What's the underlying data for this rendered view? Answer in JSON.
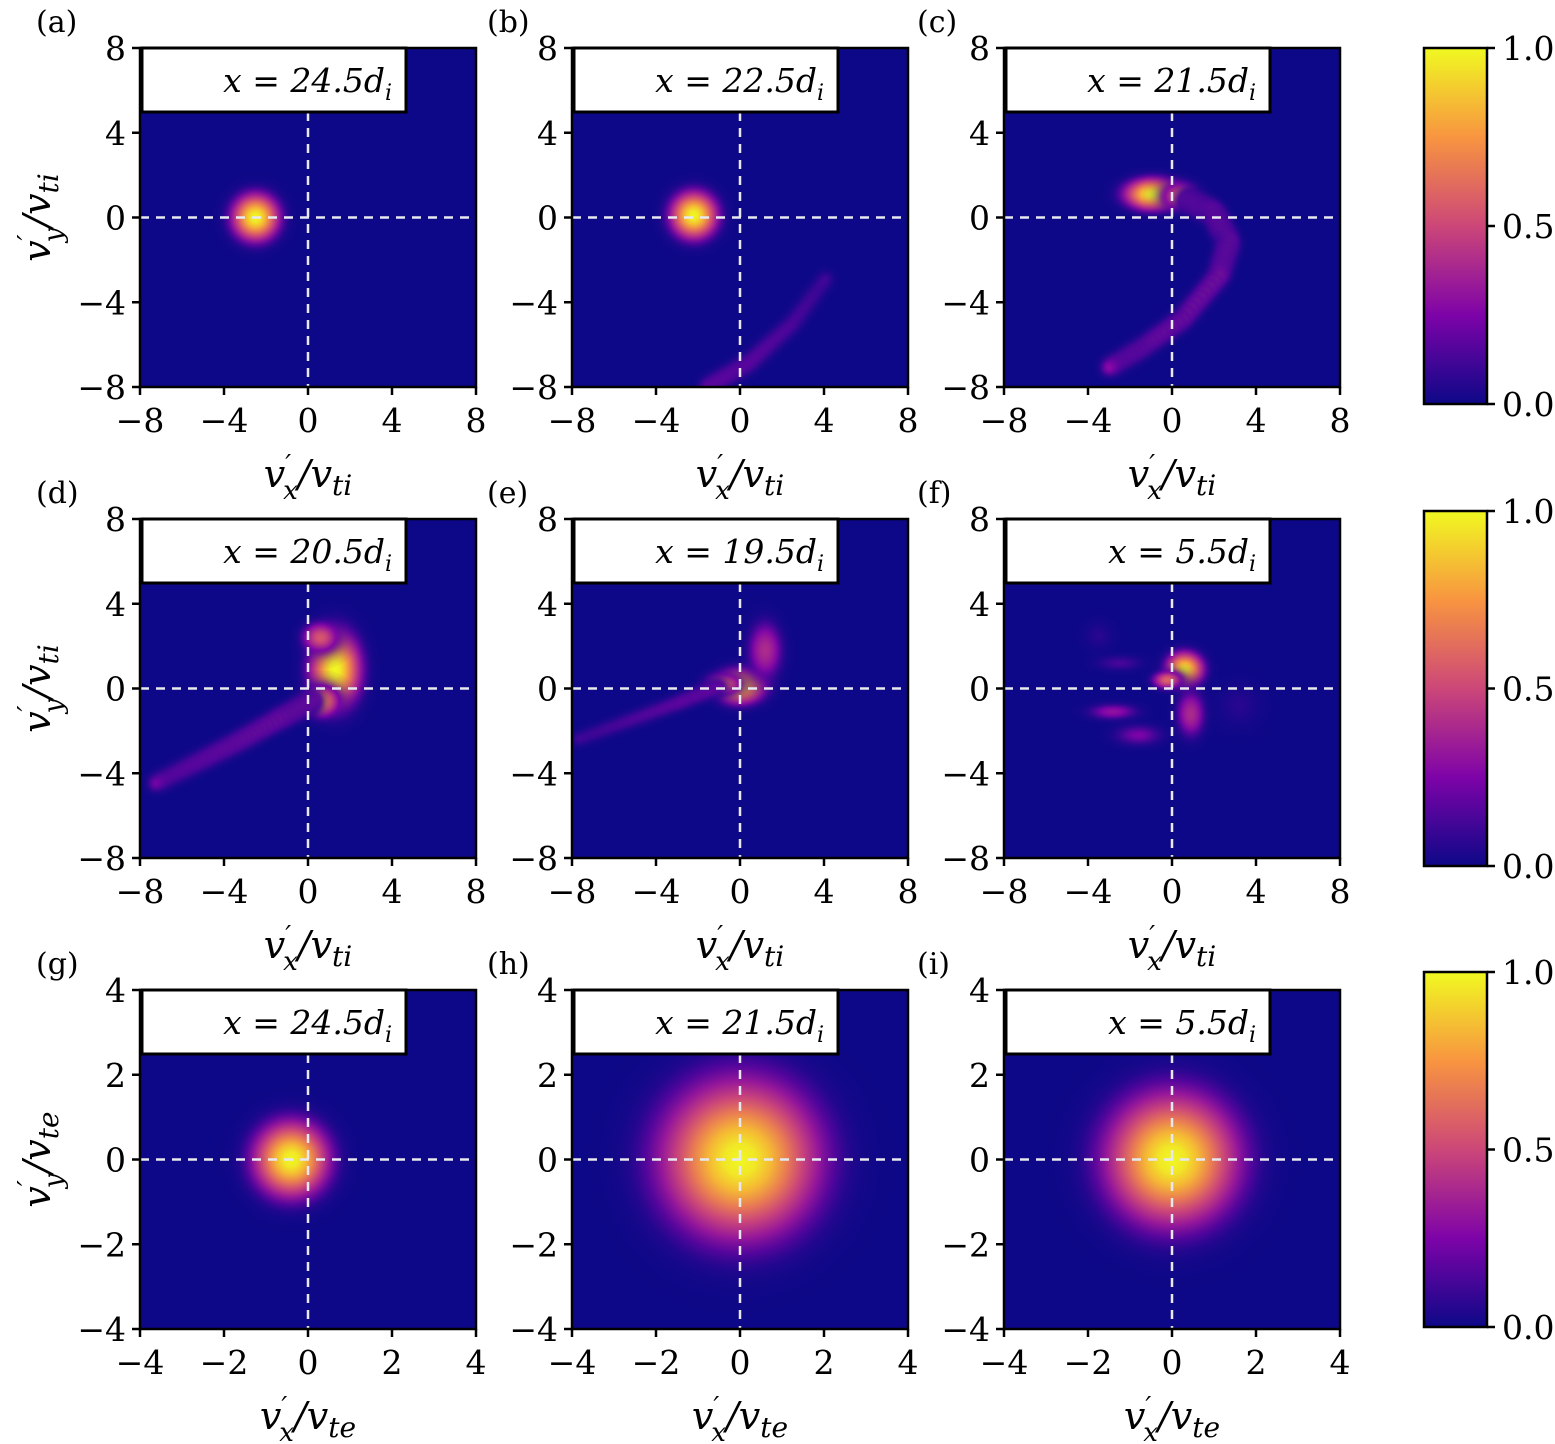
{
  "chart_data": {
    "type": "heatmap",
    "colormap": "plasma",
    "background_color": "#0d0887",
    "colorbars": [
      {
        "ticks": [
          "1.0",
          "0.5",
          "0.0"
        ],
        "range": [
          0,
          1
        ]
      },
      {
        "ticks": [
          "1.0",
          "0.5",
          "0.0"
        ],
        "range": [
          0,
          1
        ]
      },
      {
        "ticks": [
          "1.0",
          "0.5",
          "0.0"
        ],
        "range": [
          0,
          1
        ]
      }
    ],
    "rows": [
      {
        "species": "ion",
        "xlabel": {
          "v": "v",
          "p": "′",
          "s": "x",
          "d": "/v",
          "s2": "ti"
        },
        "ylabel": {
          "v": "v",
          "p": "′",
          "s": "y",
          "d": "/v",
          "s2": "ti"
        },
        "range": [
          -8,
          8
        ],
        "ticks": [
          "−8",
          "−4",
          "0",
          "4",
          "8"
        ],
        "tick_values": [
          -8,
          -4,
          0,
          4,
          8
        ]
      },
      {
        "species": "ion",
        "xlabel": {
          "v": "v",
          "p": "′",
          "s": "x",
          "d": "/v",
          "s2": "ti"
        },
        "ylabel": {
          "v": "v",
          "p": "′",
          "s": "y",
          "d": "/v",
          "s2": "ti"
        },
        "range": [
          -8,
          8
        ],
        "ticks": [
          "−8",
          "−4",
          "0",
          "4",
          "8"
        ],
        "tick_values": [
          -8,
          -4,
          0,
          4,
          8
        ]
      },
      {
        "species": "electron",
        "xlabel": {
          "v": "v",
          "p": "′",
          "s": "x",
          "d": "/v",
          "s2": "te"
        },
        "ylabel": {
          "v": "v",
          "p": "′",
          "s": "y",
          "d": "/v",
          "s2": "te"
        },
        "range": [
          -4,
          4
        ],
        "ticks": [
          "−4",
          "−2",
          "0",
          "2",
          "4"
        ],
        "tick_values": [
          -4,
          -2,
          0,
          2,
          4
        ]
      }
    ],
    "panels": [
      {
        "letter": "(a)",
        "ann": "x = 24.5",
        "ann_sub": "d",
        "ann_subi": "i",
        "blobs": [
          [
            -2.5,
            0,
            0.75,
            0.75,
            1.0
          ]
        ]
      },
      {
        "letter": "(b)",
        "ann": "x = 22.5",
        "ann_sub": "d",
        "ann_subi": "i",
        "blobs": [
          [
            -2.2,
            0.1,
            0.75,
            0.75,
            1.0
          ]
        ],
        "filaments": [
          [
            [
              -1.5,
              -8
            ],
            [
              0.5,
              -6.8
            ],
            [
              2.5,
              -5
            ],
            [
              4.3,
              -2.6
            ]
          ],
          0.3,
          0.35
        ]
      },
      {
        "letter": "(c)",
        "ann": "x = 21.5",
        "ann_sub": "d",
        "ann_subi": "i",
        "blobs": [
          [
            -0.9,
            1.1,
            0.9,
            0.5,
            1.0
          ],
          [
            0.4,
            1.0,
            0.6,
            0.45,
            0.6
          ]
        ],
        "filaments": [
          [
            [
              0.8,
              0.8
            ],
            [
              2.0,
              0.2
            ],
            [
              2.7,
              -1.2
            ],
            [
              2.2,
              -2.8
            ],
            [
              0.5,
              -4.8
            ],
            [
              -1.5,
              -6.2
            ],
            [
              -3.2,
              -7.2
            ]
          ],
          0.55,
          0.35
        ]
      },
      {
        "letter": "(d)",
        "ann": "x = 20.5",
        "ann_sub": "d",
        "ann_subi": "i",
        "blobs": [
          [
            1.3,
            0.9,
            0.8,
            1.2,
            1.0
          ],
          [
            0.6,
            2.4,
            0.6,
            0.5,
            0.55
          ],
          [
            0.6,
            -0.6,
            0.6,
            0.5,
            0.75
          ]
        ],
        "filaments": [
          [
            [
              0.2,
              -0.6
            ],
            [
              -1.5,
              -1.5
            ],
            [
              -3.5,
              -2.6
            ],
            [
              -5.5,
              -3.6
            ],
            [
              -7.5,
              -4.6
            ]
          ],
          0.45,
          0.35
        ]
      },
      {
        "letter": "(e)",
        "ann": "x = 19.5",
        "ann_sub": "d",
        "ann_subi": "i",
        "blobs": [
          [
            0.0,
            0.1,
            0.8,
            0.55,
            0.9
          ],
          [
            1.2,
            1.8,
            0.6,
            1.0,
            0.4
          ],
          [
            -0.8,
            0.2,
            0.6,
            0.35,
            0.6
          ]
        ],
        "filaments": [
          [
            [
              -1,
              0.1
            ],
            [
              -3,
              -0.7
            ],
            [
              -5.5,
              -1.6
            ],
            [
              -8,
              -2.5
            ]
          ],
          0.3,
          0.3
        ]
      },
      {
        "letter": "(f)",
        "ann": "x = 5.5",
        "ann_sub": "d",
        "ann_subi": "i",
        "blobs": [
          [
            0.6,
            0.9,
            0.6,
            0.55,
            0.95
          ],
          [
            -0.2,
            0.4,
            0.5,
            0.3,
            0.6
          ],
          [
            0.9,
            -1.2,
            0.5,
            0.8,
            0.4
          ],
          [
            -2.8,
            -1.1,
            0.9,
            0.3,
            0.3
          ],
          [
            -1.6,
            -2.2,
            0.9,
            0.4,
            0.25
          ],
          [
            3.2,
            -0.8,
            0.9,
            0.9,
            0.12
          ],
          [
            -3.5,
            2.5,
            0.6,
            0.6,
            0.12
          ],
          [
            -2.5,
            1.2,
            0.9,
            0.3,
            0.18
          ]
        ]
      },
      {
        "letter": "(g)",
        "ann": "x = 24.5",
        "ann_sub": "d",
        "ann_subi": "i",
        "blobs": [
          [
            -0.4,
            0.0,
            0.6,
            0.6,
            1.0
          ]
        ]
      },
      {
        "letter": "(h)",
        "ann": "x = 21.5",
        "ann_sub": "d",
        "ann_subi": "i",
        "blobs": [
          [
            0.0,
            0.0,
            1.25,
            1.25,
            1.0
          ]
        ]
      },
      {
        "letter": "(i)",
        "ann": "x = 5.5",
        "ann_sub": "d",
        "ann_subi": "i",
        "blobs": [
          [
            0.0,
            0.0,
            1.05,
            1.05,
            1.0
          ]
        ]
      }
    ]
  }
}
